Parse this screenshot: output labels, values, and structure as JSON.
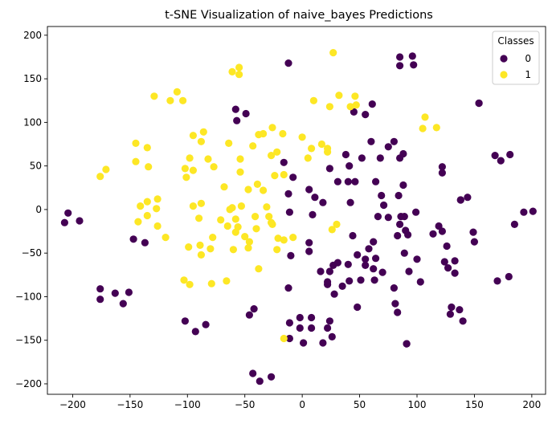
{
  "chart_data": {
    "type": "scatter",
    "title": "t-SNE Visualization of naive_bayes Predictions",
    "xlabel": "",
    "ylabel": "",
    "xlim": [
      -222,
      212
    ],
    "ylim": [
      -212,
      210
    ],
    "xticks": [
      -200,
      -150,
      -100,
      -50,
      0,
      50,
      100,
      150,
      200
    ],
    "yticks": [
      -200,
      -150,
      -100,
      -50,
      0,
      50,
      100,
      150,
      200
    ],
    "grid": false,
    "legend": {
      "title": "Classes",
      "placement": "top-right"
    },
    "series": [
      {
        "name": "0",
        "color": "#440154",
        "points": [
          [
            -207,
            -15
          ],
          [
            -204,
            -4
          ],
          [
            -194,
            -13
          ],
          [
            -147,
            -34
          ],
          [
            -137,
            -38
          ],
          [
            -176,
            -91
          ],
          [
            -176,
            -103
          ],
          [
            -163,
            -96
          ],
          [
            -151,
            -95
          ],
          [
            -156,
            -108
          ],
          [
            -102,
            -128
          ],
          [
            -93,
            -140
          ],
          [
            -84,
            -132
          ],
          [
            -42,
            -114
          ],
          [
            -46,
            -121
          ],
          [
            -43,
            -188
          ],
          [
            -37,
            -197
          ],
          [
            -27,
            -192
          ],
          [
            -49,
            110
          ],
          [
            -58,
            115
          ],
          [
            -57,
            102
          ],
          [
            -12,
            168
          ],
          [
            -16,
            54
          ],
          [
            -12,
            18
          ],
          [
            -8,
            37
          ],
          [
            -11,
            -3
          ],
          [
            -10,
            -53
          ],
          [
            -12,
            -90
          ],
          [
            -11,
            -130
          ],
          [
            -11,
            -148
          ],
          [
            -2,
            -124
          ],
          [
            -2,
            -136
          ],
          [
            8,
            -124
          ],
          [
            8,
            -136
          ],
          [
            1,
            -153
          ],
          [
            22,
            -136
          ],
          [
            26,
            -146
          ],
          [
            24,
            -128
          ],
          [
            18,
            -153
          ],
          [
            6,
            23
          ],
          [
            11,
            14
          ],
          [
            18,
            8
          ],
          [
            6,
            -38
          ],
          [
            6,
            -48
          ],
          [
            9,
            -6
          ],
          [
            16,
            -71
          ],
          [
            24,
            -71
          ],
          [
            22,
            -86
          ],
          [
            28,
            -97
          ],
          [
            35,
            -88
          ],
          [
            24,
            47
          ],
          [
            31,
            32
          ],
          [
            38,
            63
          ],
          [
            40,
            32
          ],
          [
            42,
            8
          ],
          [
            46,
            32
          ],
          [
            45,
            112
          ],
          [
            55,
            109
          ],
          [
            61,
            121
          ],
          [
            52,
            59
          ],
          [
            60,
            78
          ],
          [
            64,
            32
          ],
          [
            68,
            59
          ],
          [
            75,
            72
          ],
          [
            80,
            78
          ],
          [
            85,
            59
          ],
          [
            88,
            64
          ],
          [
            84,
            16
          ],
          [
            88,
            28
          ],
          [
            86,
            -8
          ],
          [
            75,
            -9
          ],
          [
            71,
            5
          ],
          [
            69,
            16
          ],
          [
            66,
            -8
          ],
          [
            62,
            -37
          ],
          [
            58,
            -45
          ],
          [
            55,
            -57
          ],
          [
            64,
            -56
          ],
          [
            62,
            -68
          ],
          [
            55,
            -64
          ],
          [
            44,
            -30
          ],
          [
            48,
            -52
          ],
          [
            40,
            -63
          ],
          [
            31,
            -61
          ],
          [
            27,
            -64
          ],
          [
            22,
            -83
          ],
          [
            41,
            -82
          ],
          [
            51,
            -81
          ],
          [
            63,
            -81
          ],
          [
            70,
            -72
          ],
          [
            80,
            -90
          ],
          [
            81,
            -108
          ],
          [
            83,
            -118
          ],
          [
            91,
            -154
          ],
          [
            91,
            -154
          ],
          [
            89,
            -50
          ],
          [
            93,
            -71
          ],
          [
            100,
            -57
          ],
          [
            103,
            -83
          ],
          [
            99,
            -3
          ],
          [
            85,
            -17
          ],
          [
            83,
            -30
          ],
          [
            89,
            -8
          ],
          [
            90,
            -24
          ],
          [
            92,
            -29
          ],
          [
            114,
            -28
          ],
          [
            119,
            -19
          ],
          [
            122,
            -25
          ],
          [
            126,
            -42
          ],
          [
            124,
            -60
          ],
          [
            127,
            -67
          ],
          [
            130,
            -112
          ],
          [
            129,
            -120
          ],
          [
            137,
            -115
          ],
          [
            140,
            -128
          ],
          [
            133,
            -73
          ],
          [
            133,
            -59
          ],
          [
            138,
            11
          ],
          [
            144,
            14
          ],
          [
            149,
            -26
          ],
          [
            150,
            -37
          ],
          [
            154,
            122
          ],
          [
            154,
            122
          ],
          [
            122,
            49
          ],
          [
            122,
            42
          ],
          [
            138,
            11
          ],
          [
            168,
            62
          ],
          [
            173,
            56
          ],
          [
            181,
            63
          ],
          [
            185,
            -17
          ],
          [
            193,
            -3
          ],
          [
            201,
            -2
          ],
          [
            170,
            -82
          ],
          [
            180,
            -77
          ],
          [
            85,
            175
          ],
          [
            96,
            176
          ],
          [
            85,
            165
          ],
          [
            97,
            166
          ],
          [
            48,
            -112
          ],
          [
            41,
            50
          ]
        ]
      },
      {
        "name": "1",
        "color": "#fde725",
        "points": [
          [
            -176,
            38
          ],
          [
            -171,
            46
          ],
          [
            -145,
            76
          ],
          [
            -145,
            55
          ],
          [
            -135,
            71
          ],
          [
            -134,
            49
          ],
          [
            -141,
            4
          ],
          [
            -135,
            -7
          ],
          [
            -143,
            -14
          ],
          [
            -135,
            9
          ],
          [
            -127,
            1
          ],
          [
            -126,
            12
          ],
          [
            -126,
            -19
          ],
          [
            -129,
            130
          ],
          [
            -115,
            125
          ],
          [
            -109,
            135
          ],
          [
            -104,
            125
          ],
          [
            -102,
            47
          ],
          [
            -101,
            37
          ],
          [
            -98,
            59
          ],
          [
            -95,
            45
          ],
          [
            -95,
            85
          ],
          [
            -95,
            4
          ],
          [
            -88,
            78
          ],
          [
            -86,
            89
          ],
          [
            -88,
            7
          ],
          [
            -90,
            -10
          ],
          [
            -99,
            -43
          ],
          [
            -89,
            -41
          ],
          [
            -88,
            -52
          ],
          [
            -103,
            -81
          ],
          [
            -98,
            -86
          ],
          [
            -82,
            58
          ],
          [
            -77,
            49
          ],
          [
            -68,
            26
          ],
          [
            -64,
            76
          ],
          [
            -61,
            2
          ],
          [
            -58,
            -11
          ],
          [
            -58,
            -26
          ],
          [
            -60,
            -46
          ],
          [
            -50,
            -31
          ],
          [
            -53,
            4
          ],
          [
            -54,
            43
          ],
          [
            -54,
            58
          ],
          [
            -47,
            23
          ],
          [
            -46,
            -37
          ],
          [
            -47,
            -44
          ],
          [
            -41,
            -8
          ],
          [
            -40,
            -22
          ],
          [
            -38,
            -68
          ],
          [
            -43,
            73
          ],
          [
            -39,
            29
          ],
          [
            -38,
            86
          ],
          [
            -34,
            87
          ],
          [
            -26,
            94
          ],
          [
            -22,
            66
          ],
          [
            -27,
            62
          ],
          [
            -34,
            22
          ],
          [
            -31,
            3
          ],
          [
            -27,
            -15
          ],
          [
            -21,
            -33
          ],
          [
            -22,
            -46
          ],
          [
            -16,
            -35
          ],
          [
            -16,
            -148
          ],
          [
            -26,
            -17
          ],
          [
            -29,
            -8
          ],
          [
            -24,
            39
          ],
          [
            -17,
            87
          ],
          [
            -16,
            40
          ],
          [
            -8,
            -32
          ],
          [
            0,
            83
          ],
          [
            5,
            59
          ],
          [
            8,
            70
          ],
          [
            17,
            75
          ],
          [
            22,
            66
          ],
          [
            22,
            70
          ],
          [
            26,
            -23
          ],
          [
            30,
            -17
          ],
          [
            24,
            118
          ],
          [
            27,
            180
          ],
          [
            10,
            125
          ],
          [
            32,
            131
          ],
          [
            46,
            130
          ],
          [
            42,
            118
          ],
          [
            47,
            120
          ],
          [
            107,
            106
          ],
          [
            105,
            93
          ],
          [
            117,
            94
          ],
          [
            -119,
            -32
          ],
          [
            -79,
            -85
          ],
          [
            -61,
            158
          ],
          [
            -55,
            163
          ],
          [
            -55,
            155
          ],
          [
            -78,
            -32
          ],
          [
            -66,
            -82
          ],
          [
            -65,
            -19
          ],
          [
            -63,
            0
          ],
          [
            -56,
            -20
          ],
          [
            -71,
            -12
          ],
          [
            -80,
            -45
          ]
        ]
      }
    ]
  }
}
